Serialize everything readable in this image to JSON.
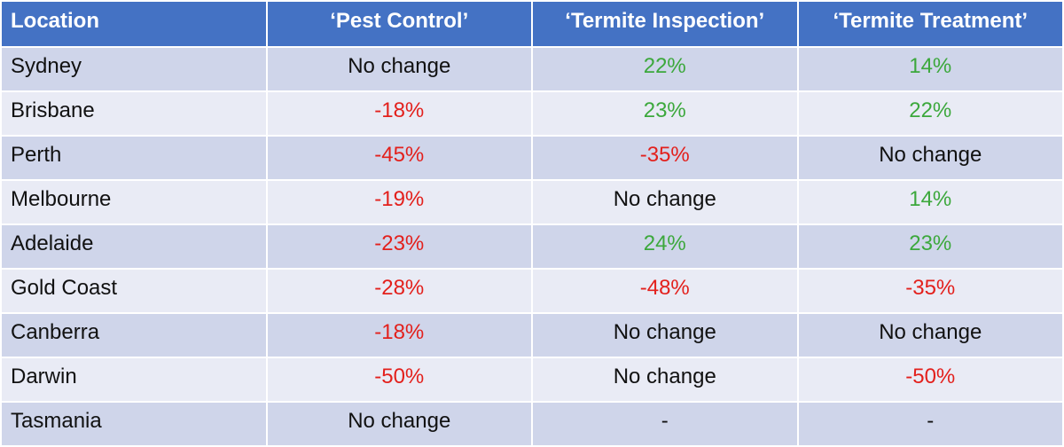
{
  "table": {
    "header": [
      "Location",
      "‘Pest Control’",
      "‘Termite Inspection’",
      "‘Termite Treatment’"
    ],
    "rows": [
      [
        "Sydney",
        "No change",
        "22%",
        "14%"
      ],
      [
        "Brisbane",
        "-18%",
        "23%",
        "22%"
      ],
      [
        "Perth",
        "-45%",
        "-35%",
        "No change"
      ],
      [
        "Melbourne",
        "-19%",
        "No change",
        "14%"
      ],
      [
        "Adelaide",
        "-23%",
        "24%",
        "23%"
      ],
      [
        "Gold Coast",
        "-28%",
        "-48%",
        "-35%"
      ],
      [
        "Canberra",
        "-18%",
        "No change",
        "No change"
      ],
      [
        "Darwin",
        "-50%",
        "No change",
        "-50%"
      ],
      [
        "Tasmania",
        "No change",
        "-",
        "-"
      ]
    ]
  }
}
